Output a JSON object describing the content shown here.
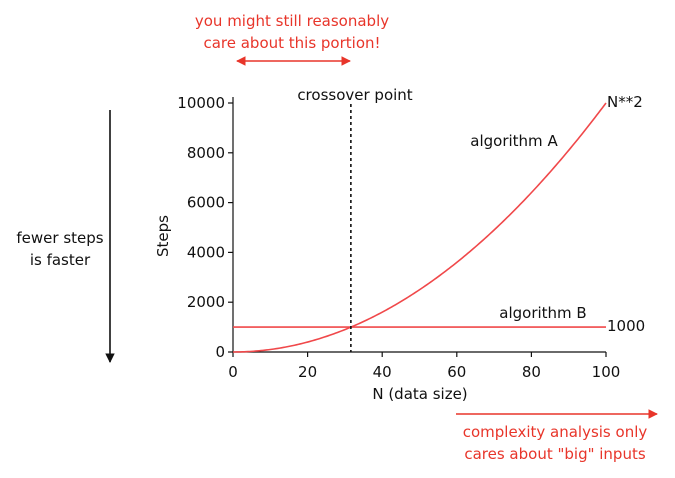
{
  "chart_data": {
    "type": "line",
    "xlabel": "N (data size)",
    "ylabel": "Steps",
    "xlim": [
      0,
      100
    ],
    "ylim": [
      0,
      10000
    ],
    "xticks": [
      0,
      20,
      40,
      60,
      80,
      100
    ],
    "yticks": [
      0,
      2000,
      4000,
      6000,
      8000,
      10000
    ],
    "grid": false,
    "series": [
      {
        "name": "algorithm A",
        "formula": "N**2",
        "end_label": "N**2",
        "color": "#f0484a"
      },
      {
        "name": "algorithm B",
        "formula": "1000",
        "end_label": "1000",
        "color": "#f0484a"
      }
    ],
    "crossover": {
      "x": 31.6,
      "label": "crossover point"
    }
  },
  "annotations": {
    "top_note_line1": "you might still reasonably",
    "top_note_line2": "care about this portion!",
    "left_note_line1": "fewer steps",
    "left_note_line2": "is faster",
    "bottom_note_line1": "complexity analysis only",
    "bottom_note_line2": "cares about \"big\" inputs",
    "accent_color": "#e8352a"
  }
}
